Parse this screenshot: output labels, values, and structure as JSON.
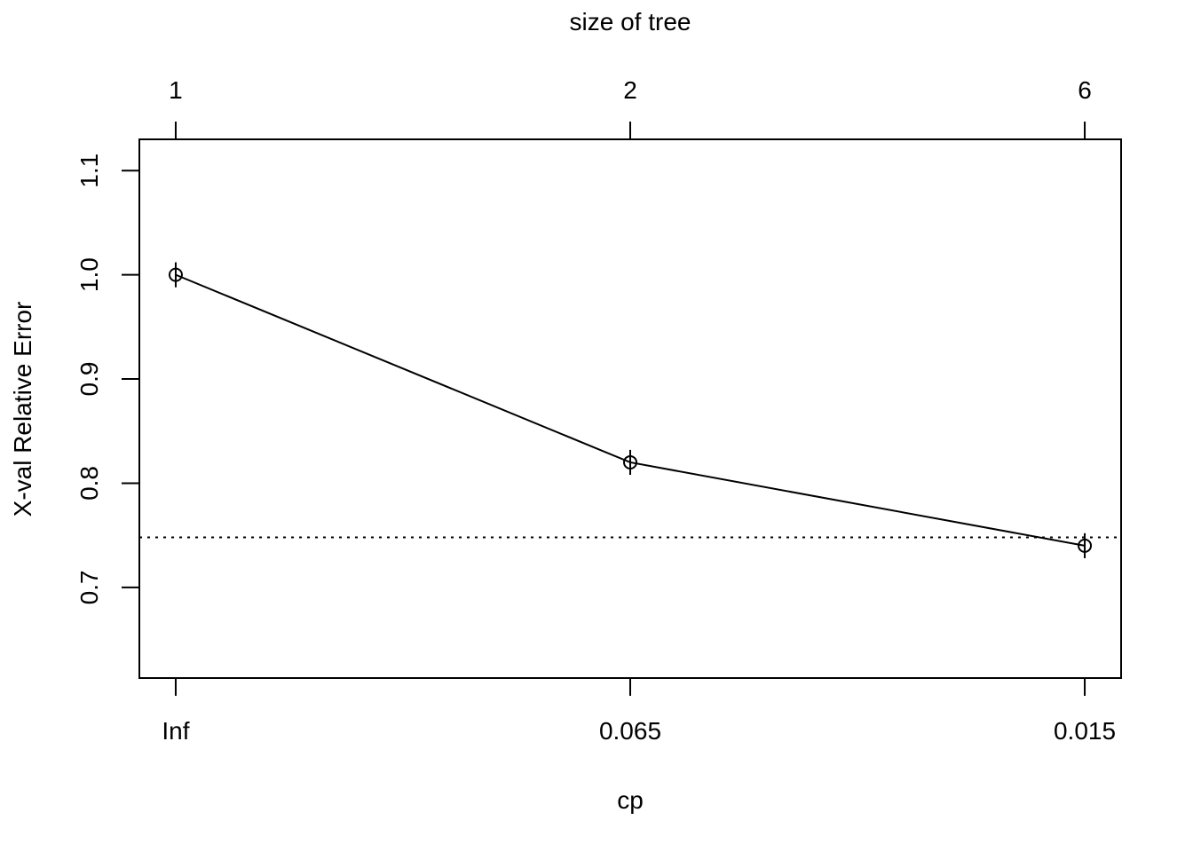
{
  "chart_data": {
    "type": "line",
    "x_tick_labels": [
      "Inf",
      "0.065",
      "0.015"
    ],
    "top_axis": {
      "label": "size of tree",
      "tick_labels": [
        "1",
        "2",
        "6"
      ]
    },
    "series": [
      {
        "x": [
          1,
          2,
          3
        ],
        "values": [
          1.0,
          0.82,
          0.74
        ],
        "error_half_width": [
          0.012,
          0.012,
          0.012
        ]
      }
    ],
    "reference_line": {
      "y": 0.748,
      "style": "dotted"
    },
    "xlabel": "cp",
    "ylabel": "X-val Relative Error",
    "xlim": [
      0.92,
      3.08
    ],
    "ylim": [
      0.613,
      1.13
    ],
    "y_ticks": [
      0.7,
      0.8,
      0.9,
      1.0,
      1.1
    ],
    "y_tick_labels": [
      "0.7",
      "0.8",
      "0.9",
      "1.0",
      "1.1"
    ],
    "grid": false,
    "marker": "open-circle",
    "colors": {
      "line": "#000000",
      "background": "#ffffff"
    }
  }
}
